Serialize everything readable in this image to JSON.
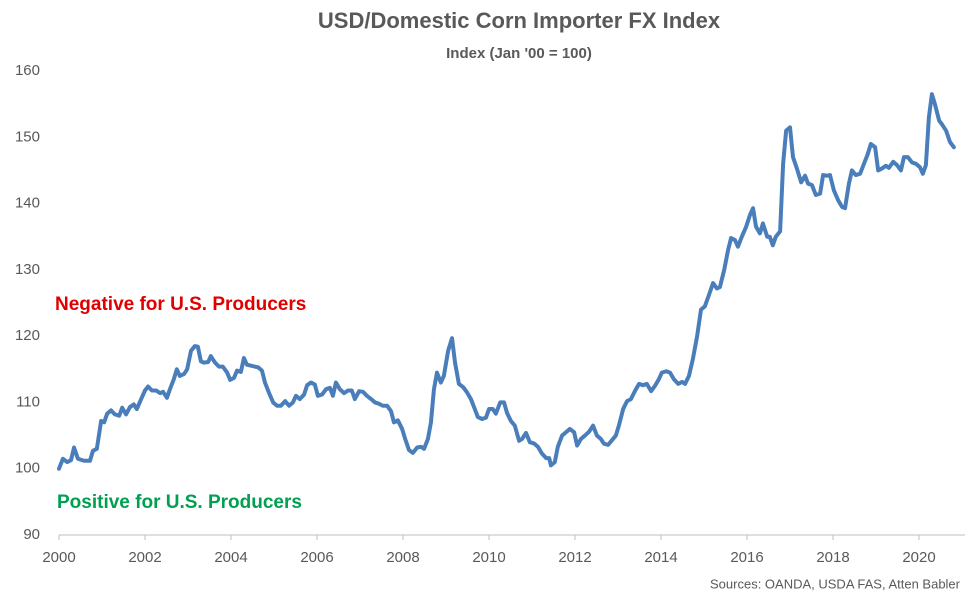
{
  "chart_data": {
    "type": "line",
    "title": "USD/Domestic Corn Importer FX Index",
    "subtitle": "Index (Jan '00 = 100)",
    "source": "Sources: OANDA, USDA FAS, Atten Babler",
    "annotations": [
      {
        "text": "Negative for U.S. Producers",
        "color": "#e00000"
      },
      {
        "text": "Positive for U.S. Producers",
        "color": "#00a050"
      }
    ],
    "xlim": [
      2000,
      2021.07
    ],
    "xticks": [
      2000,
      2002,
      2004,
      2006,
      2008,
      2010,
      2012,
      2014,
      2016,
      2018,
      2020
    ],
    "ylim": [
      90,
      160
    ],
    "yticks": [
      90,
      100,
      110,
      120,
      130,
      140,
      150,
      160
    ],
    "grid": false,
    "x": [
      2000.0,
      2000.09,
      2000.19,
      2000.28,
      2000.35,
      2000.44,
      2000.58,
      2000.72,
      2000.79,
      2000.88,
      2000.98,
      2001.05,
      2001.12,
      2001.21,
      2001.3,
      2001.4,
      2001.47,
      2001.56,
      2001.65,
      2001.74,
      2001.81,
      2001.91,
      2002.0,
      2002.07,
      2002.16,
      2002.26,
      2002.35,
      2002.42,
      2002.51,
      2002.58,
      2002.67,
      2002.74,
      2002.81,
      2002.91,
      2002.98,
      2003.07,
      2003.16,
      2003.23,
      2003.3,
      2003.37,
      2003.47,
      2003.53,
      2003.63,
      2003.72,
      2003.81,
      2003.91,
      2003.98,
      2004.07,
      2004.14,
      2004.23,
      2004.3,
      2004.37,
      2004.49,
      2004.63,
      2004.72,
      2004.79,
      2004.88,
      2004.98,
      2005.07,
      2005.16,
      2005.26,
      2005.35,
      2005.44,
      2005.51,
      2005.6,
      2005.7,
      2005.77,
      2005.86,
      2005.95,
      2006.02,
      2006.12,
      2006.21,
      2006.3,
      2006.37,
      2006.44,
      2006.53,
      2006.63,
      2006.72,
      2006.81,
      2006.88,
      2006.98,
      2007.07,
      2007.16,
      2007.26,
      2007.35,
      2007.44,
      2007.53,
      2007.63,
      2007.72,
      2007.79,
      2007.88,
      2007.98,
      2008.05,
      2008.14,
      2008.23,
      2008.33,
      2008.42,
      2008.49,
      2008.58,
      2008.65,
      2008.72,
      2008.79,
      2008.88,
      2008.95,
      2009.05,
      2009.14,
      2009.21,
      2009.3,
      2009.4,
      2009.49,
      2009.58,
      2009.67,
      2009.74,
      2009.84,
      2009.93,
      2010.0,
      2010.09,
      2010.16,
      2010.26,
      2010.35,
      2010.42,
      2010.51,
      2010.6,
      2010.7,
      2010.77,
      2010.86,
      2010.95,
      2011.05,
      2011.14,
      2011.23,
      2011.33,
      2011.4,
      2011.44,
      2011.53,
      2011.6,
      2011.7,
      2011.79,
      2011.88,
      2011.98,
      2012.05,
      2012.14,
      2012.23,
      2012.33,
      2012.42,
      2012.51,
      2012.6,
      2012.67,
      2012.77,
      2012.86,
      2012.95,
      2013.02,
      2013.12,
      2013.21,
      2013.3,
      2013.4,
      2013.49,
      2013.58,
      2013.67,
      2013.77,
      2013.86,
      2013.95,
      2014.02,
      2014.12,
      2014.21,
      2014.3,
      2014.4,
      2014.49,
      2014.56,
      2014.65,
      2014.74,
      2014.84,
      2014.93,
      2015.02,
      2015.12,
      2015.21,
      2015.3,
      2015.37,
      2015.47,
      2015.56,
      2015.63,
      2015.72,
      2015.79,
      2015.88,
      2015.98,
      2016.07,
      2016.14,
      2016.21,
      2016.3,
      2016.37,
      2016.47,
      2016.53,
      2016.6,
      2016.67,
      2016.77,
      2016.84,
      2016.91,
      2017.0,
      2017.07,
      2017.16,
      2017.26,
      2017.35,
      2017.42,
      2017.51,
      2017.6,
      2017.7,
      2017.77,
      2017.86,
      2017.93,
      2018.02,
      2018.12,
      2018.21,
      2018.28,
      2018.37,
      2018.44,
      2018.53,
      2018.63,
      2018.72,
      2018.81,
      2018.88,
      2018.98,
      2019.05,
      2019.14,
      2019.23,
      2019.3,
      2019.4,
      2019.49,
      2019.58,
      2019.65,
      2019.74,
      2019.84,
      2019.93,
      2020.02,
      2020.09,
      2020.16,
      2020.23,
      2020.3,
      2020.37,
      2020.47,
      2020.53,
      2020.63,
      2020.72,
      2020.81
    ],
    "series": [
      {
        "name": "USD/Domestic Corn Importer FX Index",
        "color": "#4a7ebb",
        "values": [
          100,
          101.5,
          101,
          101.3,
          103.2,
          101.5,
          101.2,
          101.2,
          102.7,
          103,
          107.2,
          107,
          108.3,
          108.8,
          108.2,
          108,
          109.2,
          108.2,
          109.3,
          109.7,
          109,
          110.5,
          111.8,
          112.4,
          111.8,
          111.8,
          111.4,
          111.6,
          110.7,
          112,
          113.5,
          115,
          114,
          114.3,
          115,
          117.8,
          118.5,
          118.4,
          116.2,
          116,
          116.1,
          117,
          116,
          115.4,
          115.4,
          114.5,
          113.4,
          113.7,
          114.8,
          114.6,
          116.7,
          115.7,
          115.5,
          115.3,
          114.8,
          113,
          111.5,
          110,
          109.5,
          109.5,
          110.2,
          109.5,
          110,
          111,
          110.5,
          111.2,
          112.6,
          113,
          112.7,
          111,
          111.2,
          112,
          112.2,
          111,
          113,
          112,
          111.4,
          111.8,
          111.8,
          110.5,
          111.7,
          111.6,
          111,
          110.5,
          110,
          109.8,
          109.5,
          109.5,
          108.7,
          107,
          107.3,
          106,
          104.5,
          102.8,
          102.4,
          103.2,
          103.3,
          103,
          104.5,
          107,
          112,
          114.5,
          113,
          114,
          117.8,
          119.7,
          116,
          112.8,
          112.3,
          111.5,
          110.5,
          109,
          107.8,
          107.5,
          107.7,
          109,
          109,
          108.3,
          110,
          110,
          108.4,
          107.2,
          106.5,
          104.2,
          104.5,
          105.4,
          104,
          103.8,
          103.3,
          102.3,
          101.6,
          101.6,
          100.5,
          101,
          103.3,
          105,
          105.5,
          106,
          105.5,
          103.5,
          104.5,
          105,
          105.6,
          106.5,
          105,
          104.5,
          103.8,
          103.6,
          104.3,
          105,
          106.5,
          109,
          110.2,
          110.5,
          111.8,
          112.8,
          112.6,
          112.8,
          111.7,
          112.5,
          113.5,
          114.5,
          114.7,
          114.5,
          113.5,
          112.8,
          113.1,
          112.8,
          114,
          116.5,
          120,
          124,
          124.5,
          126.3,
          128,
          127.2,
          127.4,
          130,
          133,
          134.8,
          134.5,
          133.5,
          135,
          136.5,
          138.3,
          139.3,
          136.5,
          135.5,
          137,
          135,
          135,
          133.7,
          135,
          135.8,
          146,
          151,
          151.5,
          147,
          145.3,
          143.2,
          144.2,
          143,
          142.8,
          141.3,
          141.5,
          144.3,
          144.2,
          144.3,
          142,
          140.5,
          139.5,
          139.3,
          143,
          145,
          144.3,
          144.5,
          146,
          147.5,
          149,
          148.5,
          145,
          145.3,
          145.7,
          145.4,
          146.3,
          145.8,
          145,
          147,
          147,
          146.2,
          146,
          145.5,
          144.5,
          145.8,
          153,
          156.5,
          155,
          152.5,
          152,
          151,
          149.3,
          148.5
        ]
      }
    ]
  }
}
